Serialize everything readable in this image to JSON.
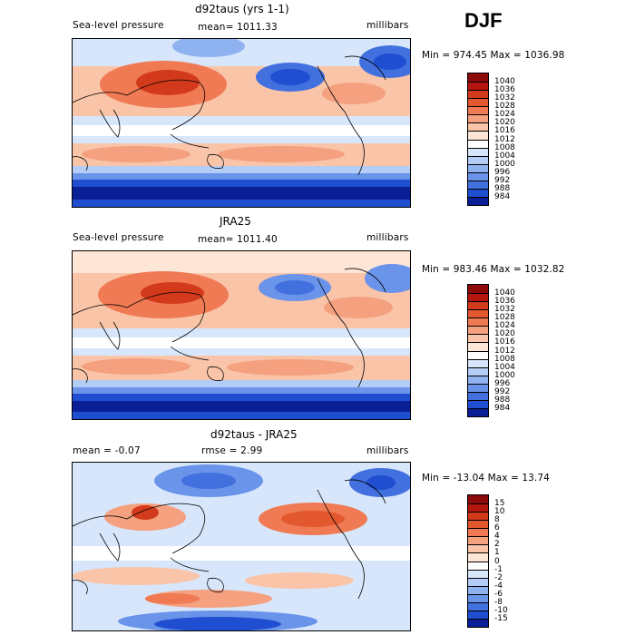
{
  "season": "DJF",
  "colors": {
    "deep_blue": "#08209a",
    "blue": "#2a55d6",
    "mid_blue": "#5a86ea",
    "light_blue": "#a9c6f5",
    "pale_blue": "#d6e6fb",
    "pale_orange": "#fbd9c4",
    "light_orange": "#f6a887",
    "orange": "#ee6b46",
    "red": "#d93c1e"
  },
  "chart_data": [
    {
      "type": "heatmap",
      "title": "d92taus (yrs 1-1)",
      "field_label": "Sea-level pressure",
      "mean_label": "mean= 1011.33",
      "units": "millibars",
      "minmax_label": "Min = 974.45 Max = 1036.98",
      "min": 974.45,
      "max": 1036.98,
      "colorbar": {
        "levels": [
          "1040",
          "1036",
          "1032",
          "1028",
          "1024",
          "1020",
          "1016",
          "1012",
          "1008",
          "1004",
          "1000",
          "996",
          "992",
          "988",
          "984"
        ],
        "colors": [
          "#8c0a0a",
          "#b5160f",
          "#d33a1c",
          "#e4582f",
          "#ef7a53",
          "#f5a07f",
          "#f9c4a8",
          "#fde6d6",
          "#ffffff",
          "#d7e6fb",
          "#b4cdf6",
          "#8fb2f0",
          "#6a93ea",
          "#4270de",
          "#1f4ed0",
          "#0a1f96"
        ]
      }
    },
    {
      "type": "heatmap",
      "title": "JRA25",
      "field_label": "Sea-level pressure",
      "mean_label": "mean= 1011.40",
      "units": "millibars",
      "minmax_label": "Min = 983.46 Max = 1032.82",
      "min": 983.46,
      "max": 1032.82,
      "colorbar": {
        "levels": [
          "1040",
          "1036",
          "1032",
          "1028",
          "1024",
          "1020",
          "1016",
          "1012",
          "1008",
          "1004",
          "1000",
          "996",
          "992",
          "988",
          "984"
        ],
        "colors": [
          "#8c0a0a",
          "#b5160f",
          "#d33a1c",
          "#e4582f",
          "#ef7a53",
          "#f5a07f",
          "#f9c4a8",
          "#fde6d6",
          "#ffffff",
          "#d7e6fb",
          "#b4cdf6",
          "#8fb2f0",
          "#6a93ea",
          "#4270de",
          "#1f4ed0",
          "#0a1f96"
        ]
      }
    },
    {
      "type": "heatmap",
      "title": "d92taus - JRA25",
      "mean_label": "mean =   -0.07",
      "rmse_label": "rmse =    2.99",
      "units": "millibars",
      "minmax_label": "Min = -13.04 Max =  13.74",
      "min": -13.04,
      "max": 13.74,
      "colorbar": {
        "levels": [
          "15",
          "10",
          "8",
          "6",
          "4",
          "2",
          "1",
          "0",
          "-1",
          "-2",
          "-4",
          "-6",
          "-8",
          "-10",
          "-15"
        ],
        "colors": [
          "#8c0a0a",
          "#b5160f",
          "#d33a1c",
          "#e4582f",
          "#ef7a53",
          "#f5a07f",
          "#f9c4a8",
          "#fde6d6",
          "#ffffff",
          "#d7e6fb",
          "#b4cdf6",
          "#8fb2f0",
          "#6a93ea",
          "#4270de",
          "#1f4ed0",
          "#0a1f96"
        ]
      }
    }
  ]
}
